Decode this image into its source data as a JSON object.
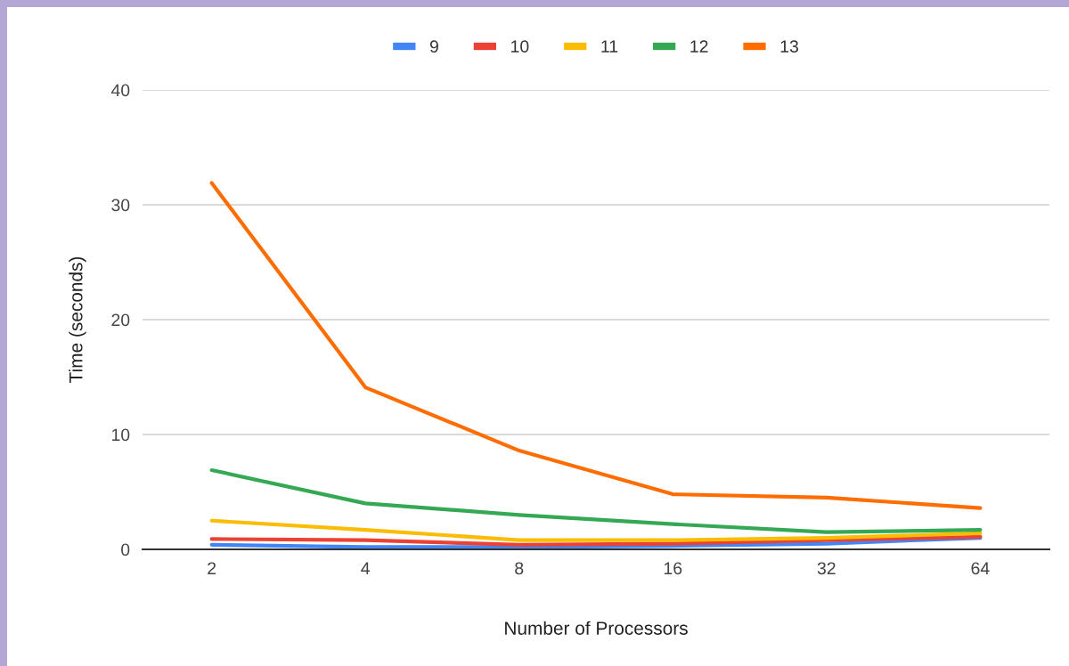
{
  "chart_data": {
    "type": "line",
    "xlabel": "Number of Processors",
    "ylabel": "Time (seconds)",
    "categories": [
      "2",
      "4",
      "8",
      "16",
      "32",
      "64"
    ],
    "series": [
      {
        "name": "9",
        "color": "#4285f4",
        "values": [
          0.4,
          0.2,
          0.2,
          0.3,
          0.5,
          1.0
        ]
      },
      {
        "name": "10",
        "color": "#ea4335",
        "values": [
          0.9,
          0.8,
          0.4,
          0.5,
          0.8,
          1.1
        ]
      },
      {
        "name": "11",
        "color": "#fbbc04",
        "values": [
          2.5,
          1.7,
          0.8,
          0.8,
          1.0,
          1.4
        ]
      },
      {
        "name": "12",
        "color": "#34a853",
        "values": [
          6.9,
          4.0,
          3.0,
          2.2,
          1.5,
          1.7
        ]
      },
      {
        "name": "13",
        "color": "#ff6d01",
        "values": [
          31.9,
          14.1,
          8.6,
          4.8,
          4.5,
          3.6
        ]
      }
    ],
    "ylim": [
      0,
      40
    ],
    "yticks": [
      0,
      10,
      20,
      30,
      40
    ],
    "grid": "y",
    "legend": "top",
    "marker": "none",
    "line_style": "solid"
  }
}
